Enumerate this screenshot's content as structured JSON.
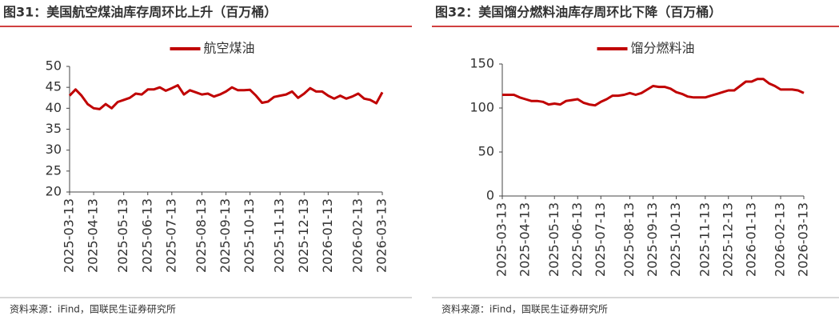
{
  "chart_data": [
    {
      "type": "line",
      "title": "图31：美国航空煤油库存周环比上升（百万桶）",
      "source": "资料来源：iFind，国联民生证券研究所",
      "categories": [
        "2025-03-13",
        null,
        null,
        null,
        "2025-04-13",
        null,
        null,
        null,
        null,
        "2025-05-13",
        null,
        null,
        null,
        "2025-06-13",
        null,
        null,
        null,
        "2025-07-13",
        null,
        null,
        null,
        null,
        "2025-08-13",
        null,
        null,
        null,
        "2025-09-13",
        null,
        null,
        null,
        "2025-10-13",
        null,
        null,
        null,
        null,
        "2025-11-13",
        null,
        null,
        null,
        "2025-12-13",
        null,
        null,
        null,
        "2026-01-13",
        null,
        null,
        null,
        null,
        "2026-02-13",
        null,
        null,
        null,
        "2026-03-13"
      ],
      "series": [
        {
          "name": "航空煤油",
          "color": "#c00000",
          "values": [
            43,
            44.5,
            43,
            41,
            40,
            39.8,
            41,
            40,
            41.5,
            42,
            42.5,
            43.5,
            43.3,
            44.5,
            44.5,
            45,
            44.2,
            44.8,
            45.5,
            43.3,
            44.3,
            43.8,
            43.3,
            43.5,
            42.8,
            43.3,
            44,
            45,
            44.3,
            44.3,
            44.4,
            43,
            41.3,
            41.6,
            42.7,
            43,
            43.3,
            44,
            42.5,
            43.5,
            44.8,
            44,
            44,
            43,
            42.3,
            43,
            42.3,
            42.8,
            43.5,
            42.3,
            42,
            41.2,
            43.8
          ]
        }
      ],
      "ylim": [
        20,
        50
      ],
      "yticks": [
        20,
        25,
        30,
        35,
        40,
        45,
        50
      ],
      "legend": "top"
    },
    {
      "type": "line",
      "title": "图32：美国馏分燃料油库存周环比下降（百万桶）",
      "source": "资料来源：iFind，国联民生证券研究所",
      "categories": [
        "2025-03-13",
        null,
        null,
        null,
        "2025-04-13",
        null,
        null,
        null,
        null,
        "2025-05-13",
        null,
        null,
        null,
        "2025-06-13",
        null,
        null,
        null,
        "2025-07-13",
        null,
        null,
        null,
        null,
        "2025-08-13",
        null,
        null,
        null,
        "2025-09-13",
        null,
        null,
        null,
        "2025-10-13",
        null,
        null,
        null,
        null,
        "2025-11-13",
        null,
        null,
        null,
        "2025-12-13",
        null,
        null,
        null,
        "2026-01-13",
        null,
        null,
        null,
        null,
        "2026-02-13",
        null,
        null,
        null,
        "2026-03-13"
      ],
      "series": [
        {
          "name": "馏分燃料油",
          "color": "#c00000",
          "values": [
            115,
            115,
            115,
            112,
            110,
            108,
            108,
            107,
            104,
            105,
            104,
            108,
            109,
            110,
            106,
            104,
            103,
            107,
            110,
            114,
            114,
            115,
            117,
            115,
            117,
            121,
            125,
            124,
            124,
            122,
            118,
            116,
            113,
            112,
            112,
            112,
            114,
            116,
            118,
            120,
            120,
            125,
            130,
            130,
            133,
            133,
            128,
            125,
            121,
            121,
            121,
            120,
            117
          ]
        }
      ],
      "ylim": [
        0,
        150
      ],
      "yticks": [
        0,
        50,
        100,
        150
      ],
      "legend": "top"
    }
  ]
}
